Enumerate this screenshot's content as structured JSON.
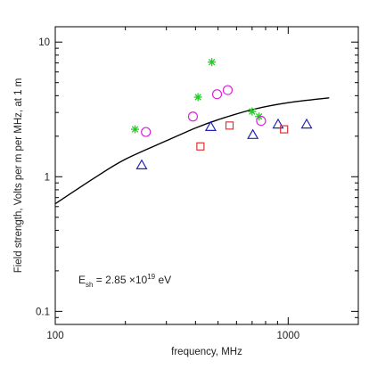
{
  "chart_data": {
    "type": "scatter",
    "xlabel": "frequency, MHz",
    "ylabel": "Field strength, Volts per m per MHz, at 1 m",
    "x_scale": "log",
    "y_scale": "log",
    "xlim": [
      100,
      2000
    ],
    "ylim": [
      0.08,
      13
    ],
    "x_ticks": [
      {
        "value": 100,
        "label": "100"
      },
      {
        "value": 1000,
        "label": "1000"
      }
    ],
    "y_ticks": [
      {
        "value": 0.1,
        "label": "0.1"
      },
      {
        "value": 1,
        "label": "1"
      },
      {
        "value": 10,
        "label": "10"
      }
    ],
    "annotation": {
      "symbol": "E",
      "subscript": "sh",
      "text_before_exp": " = 2.85 ×10",
      "exponent": "19",
      "text_after_exp": " eV"
    },
    "series": [
      {
        "marker": "asterisk",
        "color": "#22cc22",
        "points": [
          {
            "x": 220,
            "y": 2.25
          },
          {
            "x": 410,
            "y": 3.9
          },
          {
            "x": 470,
            "y": 7.1
          },
          {
            "x": 700,
            "y": 3.05
          },
          {
            "x": 750,
            "y": 2.8
          }
        ]
      },
      {
        "marker": "circle",
        "color": "#dd22dd",
        "points": [
          {
            "x": 245,
            "y": 2.15
          },
          {
            "x": 390,
            "y": 2.8
          },
          {
            "x": 495,
            "y": 4.1
          },
          {
            "x": 550,
            "y": 4.4
          },
          {
            "x": 765,
            "y": 2.6
          }
        ]
      },
      {
        "marker": "triangle",
        "color": "#2222bb",
        "points": [
          {
            "x": 235,
            "y": 1.22
          },
          {
            "x": 465,
            "y": 2.35
          },
          {
            "x": 705,
            "y": 2.05
          },
          {
            "x": 905,
            "y": 2.45
          },
          {
            "x": 1200,
            "y": 2.45
          }
        ]
      },
      {
        "marker": "square",
        "color": "#dd3333",
        "points": [
          {
            "x": 420,
            "y": 1.68
          },
          {
            "x": 560,
            "y": 2.4
          },
          {
            "x": 960,
            "y": 2.25
          }
        ]
      }
    ],
    "curve": {
      "color": "#000000",
      "points": [
        {
          "x": 100,
          "y": 0.63
        },
        {
          "x": 150,
          "y": 1.0
        },
        {
          "x": 200,
          "y": 1.35
        },
        {
          "x": 300,
          "y": 1.85
        },
        {
          "x": 400,
          "y": 2.3
        },
        {
          "x": 500,
          "y": 2.65
        },
        {
          "x": 700,
          "y": 3.15
        },
        {
          "x": 1000,
          "y": 3.55
        },
        {
          "x": 1500,
          "y": 3.85
        }
      ]
    }
  }
}
